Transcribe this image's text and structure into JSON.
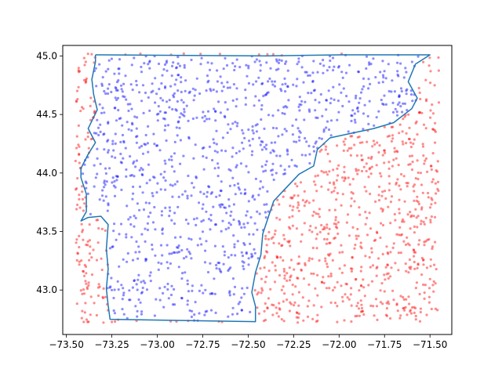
{
  "chart_data": {
    "type": "scatter",
    "title": "",
    "xlabel": "",
    "ylabel": "",
    "xlim": [
      -73.52,
      -71.38
    ],
    "ylim": [
      42.62,
      45.09
    ],
    "grid": false,
    "x_ticks": [
      -73.5,
      -73.25,
      -73.0,
      -72.75,
      -72.5,
      -72.25,
      -72.0,
      -71.75,
      -71.5
    ],
    "x_tick_labels": [
      "−73.50",
      "−73.25",
      "−73.00",
      "−72.75",
      "−72.50",
      "−72.25",
      "−72.00",
      "−71.75",
      "−71.50"
    ],
    "y_ticks": [
      43.0,
      43.5,
      44.0,
      44.5,
      45.0
    ],
    "y_tick_labels": [
      "43.0",
      "43.5",
      "44.0",
      "44.5",
      "45.0"
    ],
    "boundary": {
      "color": "#1f77b4",
      "points": [
        [
          -73.34,
          45.01
        ],
        [
          -72.4,
          45.0
        ],
        [
          -71.99,
          45.01
        ],
        [
          -71.5,
          45.01
        ],
        [
          -71.58,
          44.93
        ],
        [
          -71.62,
          44.78
        ],
        [
          -71.57,
          44.64
        ],
        [
          -71.6,
          44.55
        ],
        [
          -71.7,
          44.43
        ],
        [
          -71.81,
          44.38
        ],
        [
          -71.93,
          44.34
        ],
        [
          -72.05,
          44.3
        ],
        [
          -72.12,
          44.2
        ],
        [
          -72.14,
          44.06
        ],
        [
          -72.22,
          43.99
        ],
        [
          -72.3,
          43.86
        ],
        [
          -72.36,
          43.76
        ],
        [
          -72.39,
          43.62
        ],
        [
          -72.42,
          43.48
        ],
        [
          -72.43,
          43.3
        ],
        [
          -72.46,
          43.15
        ],
        [
          -72.48,
          42.98
        ],
        [
          -72.46,
          42.86
        ],
        [
          -72.46,
          42.73
        ],
        [
          -73.26,
          42.75
        ],
        [
          -73.27,
          42.87
        ],
        [
          -73.28,
          43.01
        ],
        [
          -73.27,
          43.18
        ],
        [
          -73.28,
          43.35
        ],
        [
          -73.27,
          43.56
        ],
        [
          -73.31,
          43.63
        ],
        [
          -73.38,
          43.62
        ],
        [
          -73.42,
          43.59
        ],
        [
          -73.39,
          43.67
        ],
        [
          -73.39,
          43.82
        ],
        [
          -73.42,
          43.96
        ],
        [
          -73.42,
          44.04
        ],
        [
          -73.38,
          44.16
        ],
        [
          -73.34,
          44.26
        ],
        [
          -73.38,
          44.38
        ],
        [
          -73.33,
          44.54
        ],
        [
          -73.35,
          44.67
        ],
        [
          -73.36,
          44.8
        ],
        [
          -73.34,
          44.95
        ],
        [
          -73.34,
          45.01
        ]
      ]
    },
    "series": [
      {
        "color": "#0000ff",
        "count": 1100,
        "region": "inside boundary",
        "x_range": [
          -73.45,
          -71.5
        ],
        "y_range": [
          42.72,
          45.02
        ]
      },
      {
        "color": "#ff0000",
        "count": 900,
        "region": "outside boundary",
        "x_range": [
          -73.45,
          -71.45
        ],
        "y_range": [
          42.72,
          45.02
        ]
      }
    ]
  }
}
